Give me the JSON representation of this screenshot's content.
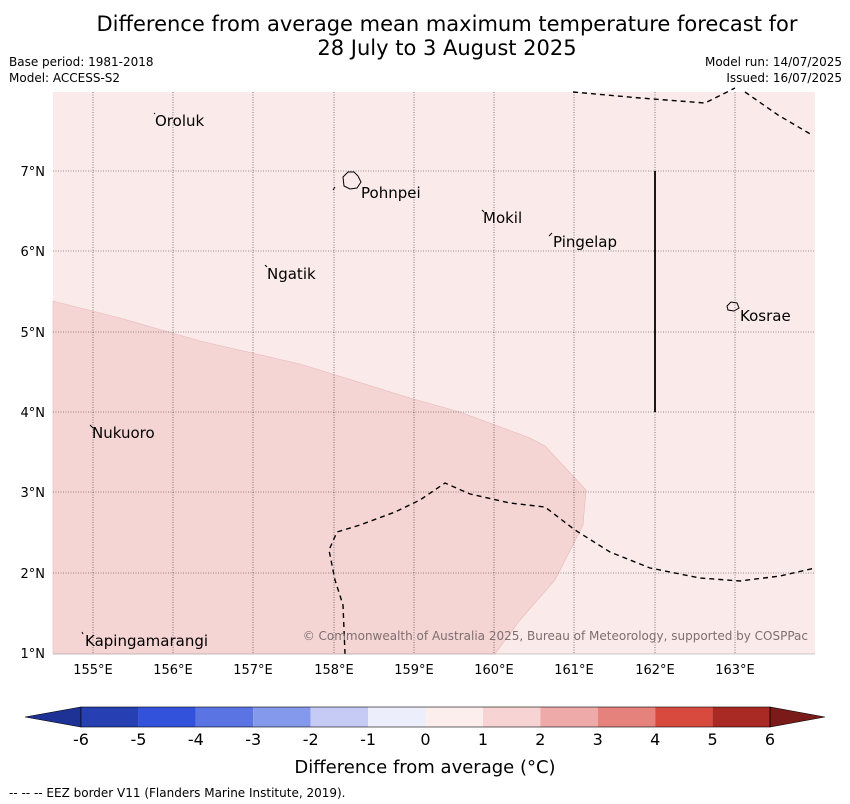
{
  "title_line1": "Difference from average mean maximum temperature forecast for",
  "title_line2": "28 July to 3 August 2025",
  "base_period": "Base period: 1981-2018",
  "model": "Model: ACCESS-S2",
  "model_run": "Model run: 14/07/2025",
  "issued": "Issued: 16/07/2025",
  "copyright": "© Commonwealth of Australia 2025, Bureau of Meteorology, supported by COSPPac",
  "colorbar_title": "Difference from average (°C)",
  "eez_legend": "-- -- -- EEZ border V11 (Flanders Marine Institute, 2019).",
  "lon_ticks": [
    "155°E",
    "156°E",
    "157°E",
    "158°E",
    "159°E",
    "160°E",
    "161°E",
    "162°E",
    "163°E"
  ],
  "lat_ticks": [
    "7°N",
    "6°N",
    "5°N",
    "4°N",
    "3°N",
    "2°N",
    "1°N"
  ],
  "places": [
    "Oroluk",
    "Pohnpei",
    "Mokil",
    "Pingelap",
    "Ngatik",
    "Kosrae",
    "Nukuoro",
    "Kapingamarangi"
  ],
  "colorbar_labels": [
    "-6",
    "-5",
    "-4",
    "-3",
    "-2",
    "-1",
    "0",
    "1",
    "2",
    "3",
    "4",
    "5",
    "6"
  ],
  "colorbar_colors": [
    "#1e3296",
    "#2640b4",
    "#3352dc",
    "#5a74e4",
    "#8599ec",
    "#c5cbf5",
    "#eceefc",
    "#fdeeee",
    "#f7d3d3",
    "#eeaaa9",
    "#e6827c",
    "#d84a3e",
    "#a92a25",
    "#7a1a19"
  ],
  "anomaly_fill": {
    "0_to_1": "#fbeaea",
    "1_to_2": "#f5d5d4"
  }
}
